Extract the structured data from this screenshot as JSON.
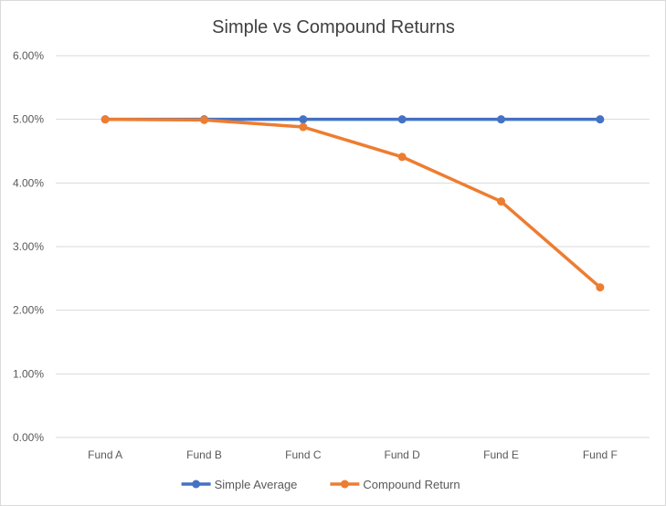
{
  "chart_data": {
    "type": "line",
    "title": "Simple vs Compound Returns",
    "categories": [
      "Fund A",
      "Fund B",
      "Fund C",
      "Fund D",
      "Fund E",
      "Fund F"
    ],
    "ylim": [
      0,
      0.06
    ],
    "y_ticks": [
      "0.00%",
      "1.00%",
      "2.00%",
      "3.00%",
      "4.00%",
      "5.00%",
      "6.00%"
    ],
    "grid": true,
    "legend_position": "bottom",
    "series": [
      {
        "name": "Simple Average",
        "color": "#4472c4",
        "values": [
          0.05,
          0.05,
          0.05,
          0.05,
          0.05,
          0.05
        ]
      },
      {
        "name": "Compound Return",
        "color": "#ed7d31",
        "values": [
          0.05,
          0.0499,
          0.0488,
          0.0441,
          0.0371,
          0.0236
        ]
      }
    ]
  }
}
